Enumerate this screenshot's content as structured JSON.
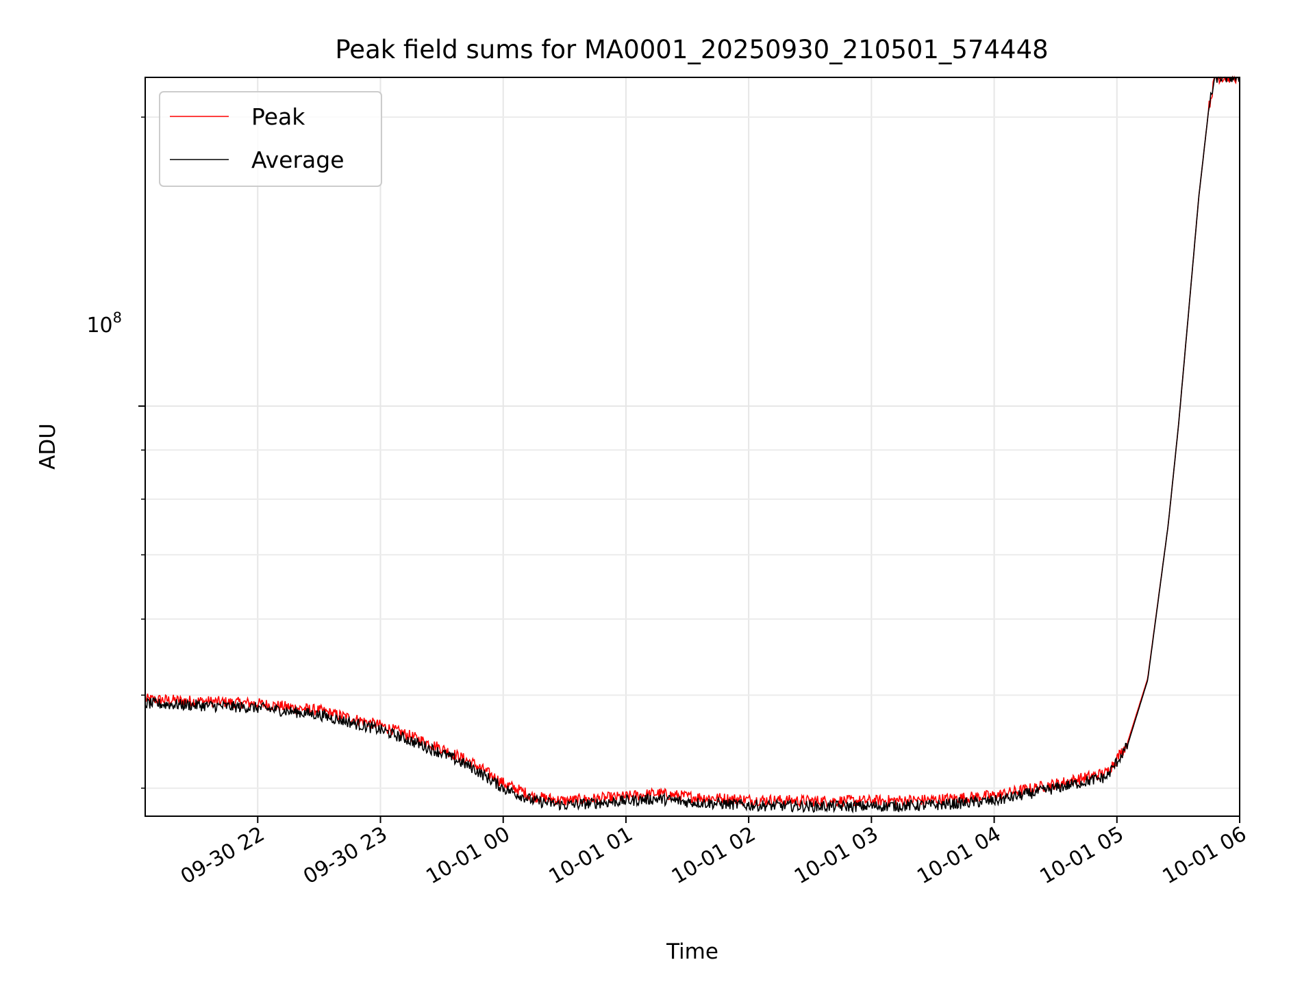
{
  "chart_data": {
    "type": "line",
    "title": "Peak field sums for MA0001_20250930_210501_574448",
    "xlabel": "Time",
    "ylabel": "ADU",
    "yscale": "log",
    "x_tick_labels": [
      "09-30 22",
      "09-30 23",
      "10-01 00",
      "10-01 01",
      "10-01 02",
      "10-01 03",
      "10-01 04",
      "10-01 05",
      "10-01 06"
    ],
    "x_ticks": [
      "2025-09-30 22:00",
      "2025-09-30 23:00",
      "2025-10-01 00:00",
      "2025-10-01 01:00",
      "2025-10-01 02:00",
      "2025-10-01 03:00",
      "2025-10-01 04:00",
      "2025-10-01 05:00",
      "2025-10-01 06:00"
    ],
    "xlim": [
      "2025-09-30 21:05",
      "2025-10-01 06:00"
    ],
    "y_tick_label_base": "10",
    "y_tick_label_exponent": "8",
    "y_tick_value": 100000000,
    "ylim": [
      37400000,
      220000000
    ],
    "grid": true,
    "legend_position": "upper left",
    "series": [
      {
        "name": "Peak",
        "color": "#ff0000",
        "x": [
          "2025-09-30 21:05",
          "2025-09-30 21:30",
          "2025-09-30 22:00",
          "2025-09-30 22:30",
          "2025-09-30 23:00",
          "2025-09-30 23:15",
          "2025-09-30 23:30",
          "2025-09-30 23:45",
          "2025-10-01 00:00",
          "2025-10-01 00:15",
          "2025-10-01 00:30",
          "2025-10-01 01:00",
          "2025-10-01 01:15",
          "2025-10-01 01:30",
          "2025-10-01 02:00",
          "2025-10-01 02:30",
          "2025-10-01 03:00",
          "2025-10-01 03:30",
          "2025-10-01 04:00",
          "2025-10-01 04:30",
          "2025-10-01 04:55",
          "2025-10-01 05:05",
          "2025-10-01 05:15",
          "2025-10-01 05:25",
          "2025-10-01 05:30",
          "2025-10-01 05:35",
          "2025-10-01 05:40",
          "2025-10-01 05:45",
          "2025-10-01 05:48",
          "2025-10-01 06:00"
        ],
        "values": [
          49500000,
          49300000,
          49000000,
          48200000,
          46500000,
          45300000,
          44000000,
          42500000,
          40500000,
          39200000,
          38800000,
          39200000,
          39500000,
          39200000,
          38900000,
          38800000,
          38800000,
          38900000,
          39300000,
          40400000,
          41500000,
          44500000,
          52000000,
          75000000,
          95000000,
          125000000,
          165000000,
          205000000,
          220000000,
          220000000
        ]
      },
      {
        "name": "Average",
        "color": "#000000",
        "x": [
          "2025-09-30 21:05",
          "2025-09-30 21:30",
          "2025-09-30 22:00",
          "2025-09-30 22:30",
          "2025-09-30 23:00",
          "2025-09-30 23:15",
          "2025-09-30 23:30",
          "2025-09-30 23:45",
          "2025-10-01 00:00",
          "2025-10-01 00:15",
          "2025-10-01 00:30",
          "2025-10-01 01:00",
          "2025-10-01 01:15",
          "2025-10-01 01:30",
          "2025-10-01 02:00",
          "2025-10-01 02:30",
          "2025-10-01 03:00",
          "2025-10-01 03:30",
          "2025-10-01 04:00",
          "2025-10-01 04:30",
          "2025-10-01 04:55",
          "2025-10-01 05:05",
          "2025-10-01 05:15",
          "2025-10-01 05:25",
          "2025-10-01 05:30",
          "2025-10-01 05:35",
          "2025-10-01 05:40",
          "2025-10-01 05:45",
          "2025-10-01 05:48",
          "2025-10-01 06:00"
        ],
        "values": [
          49000000,
          48800000,
          48500000,
          47700000,
          46000000,
          44800000,
          43500000,
          42000000,
          40000000,
          38800000,
          38400000,
          38800000,
          39000000,
          38700000,
          38400000,
          38300000,
          38300000,
          38400000,
          38800000,
          40000000,
          41100000,
          44200000,
          51800000,
          75000000,
          95000000,
          125000000,
          165000000,
          205000000,
          220000000,
          220000000
        ]
      }
    ]
  }
}
